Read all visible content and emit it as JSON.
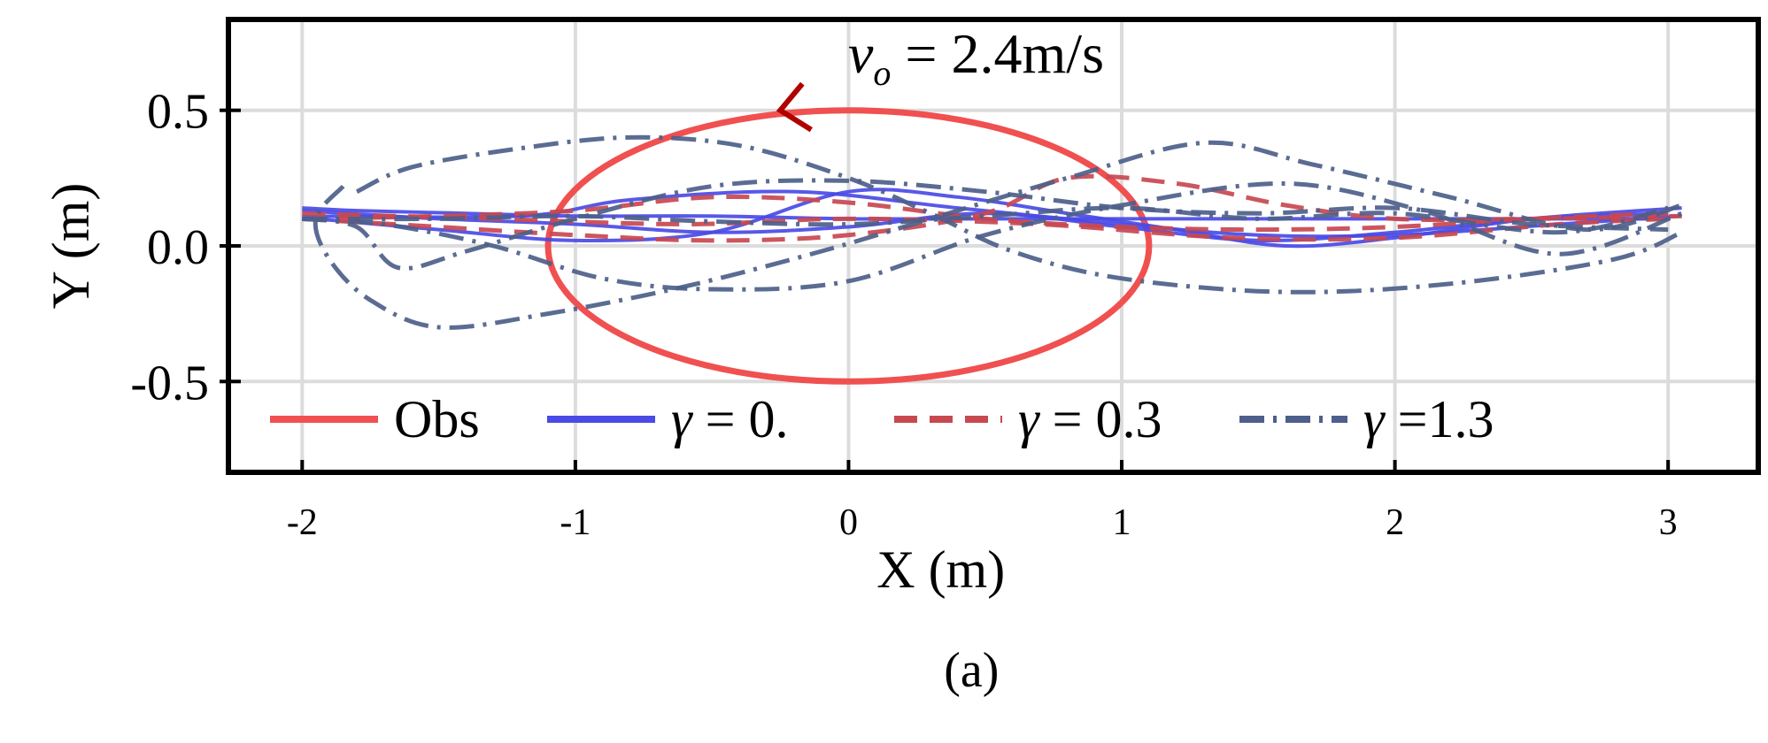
{
  "chart_data": {
    "type": "line",
    "xlabel": "X (m)",
    "ylabel": "Y (m)",
    "xlim": [
      -2.27,
      3.33
    ],
    "ylim": [
      -0.835,
      0.835
    ],
    "xticks": [
      -2,
      -1,
      0,
      1,
      2,
      3
    ],
    "xtick_labels": [
      "-2",
      "-1",
      "0",
      "1",
      "2",
      "3"
    ],
    "yticks": [
      -0.5,
      0.0,
      0.5
    ],
    "ytick_labels": [
      "-0.5",
      "0.0",
      "0.5"
    ],
    "grid": true,
    "legend_position": "bottom",
    "caption": "(a)",
    "annotation": {
      "var": "v",
      "sub": "o",
      "rest": " = 2.4m/s",
      "arrow_at": [
        -0.25,
        0.5
      ]
    },
    "obstacle": {
      "name": "Obs",
      "center": [
        0.0,
        0.0
      ],
      "radius_x": 1.1,
      "radius_y": 0.5,
      "color": "#f05050"
    },
    "legend": [
      {
        "sym": "γ",
        "label": "Obs",
        "text": "Obs"
      },
      {
        "sym": "γ",
        "text": " = 0."
      },
      {
        "sym": "γ",
        "text": " = 0.3"
      },
      {
        "sym": "γ",
        "text": " =1.3"
      }
    ],
    "series": [
      {
        "name": "Obs",
        "color": "#f05050",
        "style": "solid",
        "paths": []
      },
      {
        "name": "γ = 0.",
        "color": "#4a4ae6",
        "style": "solid",
        "paths": [
          [
            [
              -2.0,
              0.14
            ],
            [
              -1.8,
              0.13
            ],
            [
              -1.4,
              0.12
            ],
            [
              -1.0,
              0.11
            ],
            [
              -0.5,
              0.11
            ],
            [
              0.0,
              0.1
            ],
            [
              0.5,
              0.1
            ],
            [
              1.0,
              0.1
            ],
            [
              1.5,
              0.1
            ],
            [
              2.0,
              0.1
            ],
            [
              2.5,
              0.1
            ],
            [
              3.0,
              0.1
            ]
          ],
          [
            [
              -2.0,
              0.13
            ],
            [
              -1.5,
              0.1
            ],
            [
              -1.0,
              0.08
            ],
            [
              -0.5,
              0.05
            ],
            [
              0.0,
              0.07
            ],
            [
              0.5,
              0.12
            ],
            [
              1.0,
              0.07
            ],
            [
              1.5,
              0.02
            ],
            [
              2.0,
              0.05
            ],
            [
              2.5,
              0.1
            ],
            [
              3.0,
              0.12
            ]
          ],
          [
            [
              -1.95,
              0.1
            ],
            [
              -1.5,
              0.06
            ],
            [
              -1.0,
              0.02
            ],
            [
              -0.5,
              0.05
            ],
            [
              0.0,
              0.2
            ],
            [
              0.4,
              0.18
            ],
            [
              0.8,
              0.12
            ],
            [
              1.2,
              0.06
            ],
            [
              1.6,
              0.0
            ],
            [
              2.0,
              0.03
            ],
            [
              2.5,
              0.1
            ],
            [
              3.05,
              0.14
            ]
          ],
          [
            [
              -2.0,
              0.11
            ],
            [
              -1.2,
              0.11
            ],
            [
              -0.8,
              0.17
            ],
            [
              -0.2,
              0.2
            ],
            [
              0.4,
              0.14
            ],
            [
              1.0,
              0.08
            ],
            [
              1.5,
              0.04
            ],
            [
              2.0,
              0.04
            ],
            [
              2.6,
              0.08
            ],
            [
              3.05,
              0.11
            ]
          ]
        ]
      },
      {
        "name": "γ = 0.3",
        "color": "#c84850",
        "style": "dashed",
        "paths": [
          [
            [
              -2.0,
              0.1
            ],
            [
              -1.5,
              0.11
            ],
            [
              -1.0,
              0.13
            ],
            [
              -0.5,
              0.18
            ],
            [
              0.0,
              0.16
            ],
            [
              0.5,
              0.1
            ],
            [
              1.0,
              0.07
            ],
            [
              1.5,
              0.06
            ],
            [
              2.0,
              0.07
            ],
            [
              2.5,
              0.1
            ],
            [
              3.0,
              0.12
            ]
          ],
          [
            [
              -2.0,
              0.1
            ],
            [
              -1.5,
              0.07
            ],
            [
              -1.0,
              0.04
            ],
            [
              -0.5,
              0.02
            ],
            [
              0.0,
              0.04
            ],
            [
              0.5,
              0.12
            ],
            [
              0.8,
              0.25
            ],
            [
              1.2,
              0.23
            ],
            [
              1.6,
              0.15
            ],
            [
              2.0,
              0.1
            ],
            [
              2.5,
              0.1
            ],
            [
              3.05,
              0.11
            ]
          ],
          [
            [
              -2.0,
              0.12
            ],
            [
              -1.3,
              0.1
            ],
            [
              -0.6,
              0.08
            ],
            [
              0.0,
              0.1
            ],
            [
              0.7,
              0.08
            ],
            [
              1.4,
              0.03
            ],
            [
              2.0,
              0.03
            ],
            [
              2.6,
              0.08
            ],
            [
              3.0,
              0.1
            ]
          ]
        ]
      },
      {
        "name": "γ =1.3",
        "color": "#4d5f8a",
        "style": "dashdot",
        "paths": [
          [
            [
              -1.8,
              0.2
            ],
            [
              -1.6,
              0.29
            ],
            [
              -1.2,
              0.36
            ],
            [
              -0.8,
              0.4
            ],
            [
              -0.4,
              0.37
            ],
            [
              0.0,
              0.25
            ],
            [
              0.3,
              0.12
            ],
            [
              0.6,
              -0.02
            ],
            [
              1.0,
              -0.12
            ],
            [
              1.6,
              -0.17
            ],
            [
              2.2,
              -0.14
            ],
            [
              2.8,
              -0.05
            ],
            [
              3.05,
              0.05
            ]
          ],
          [
            [
              -1.85,
              0.22
            ],
            [
              -1.95,
              0.1
            ],
            [
              -1.9,
              -0.05
            ],
            [
              -1.75,
              -0.2
            ],
            [
              -1.5,
              -0.3
            ],
            [
              -1.1,
              -0.25
            ],
            [
              -0.6,
              -0.15
            ],
            [
              -0.1,
              -0.02
            ],
            [
              0.3,
              0.1
            ],
            [
              0.8,
              0.25
            ],
            [
              1.3,
              0.38
            ],
            [
              1.7,
              0.3
            ],
            [
              2.2,
              0.18
            ],
            [
              2.7,
              0.06
            ],
            [
              3.05,
              0.15
            ]
          ],
          [
            [
              -2.0,
              0.1
            ],
            [
              -1.7,
              0.08
            ],
            [
              -1.3,
              0.0
            ],
            [
              -0.9,
              -0.12
            ],
            [
              -0.5,
              -0.16
            ],
            [
              0.0,
              -0.13
            ],
            [
              0.5,
              0.04
            ],
            [
              1.0,
              0.15
            ],
            [
              1.6,
              0.23
            ],
            [
              2.1,
              0.13
            ],
            [
              2.6,
              -0.03
            ],
            [
              3.05,
              0.12
            ]
          ],
          [
            [
              -2.0,
              0.1
            ],
            [
              -1.8,
              0.07
            ],
            [
              -1.65,
              -0.08
            ],
            [
              -1.4,
              -0.02
            ],
            [
              -1.0,
              0.1
            ],
            [
              -0.5,
              0.22
            ],
            [
              0.0,
              0.24
            ],
            [
              0.5,
              0.2
            ],
            [
              1.0,
              0.14
            ],
            [
              1.5,
              0.12
            ],
            [
              2.0,
              0.14
            ],
            [
              2.5,
              0.08
            ],
            [
              3.0,
              0.06
            ]
          ],
          [
            [
              -2.0,
              0.1
            ],
            [
              -1.5,
              0.1
            ],
            [
              -1.0,
              0.11
            ],
            [
              -0.5,
              0.09
            ],
            [
              0.0,
              0.08
            ],
            [
              0.5,
              0.11
            ],
            [
              1.0,
              0.14
            ],
            [
              1.5,
              0.1
            ],
            [
              2.0,
              0.12
            ],
            [
              2.6,
              0.05
            ],
            [
              3.0,
              0.14
            ]
          ]
        ]
      }
    ]
  }
}
